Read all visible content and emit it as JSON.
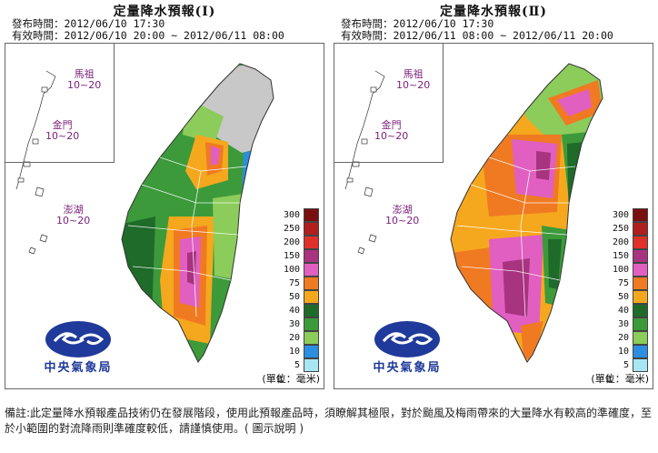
{
  "panels": [
    {
      "title": "定量降水預報(Ⅰ)",
      "issue_time": "發布時間：2012/06/10 17:30",
      "valid_time": "有效時間：2012/06/10 20:00 ~ 2012/06/11 08:00",
      "islands": [
        {
          "name": "馬祖",
          "range": "10~20"
        },
        {
          "name": "金門",
          "range": "10~20"
        },
        {
          "name": "澎湖",
          "range": "10~20"
        }
      ],
      "unit_label": "(單位：毫米)"
    },
    {
      "title": "定量降水預報(Ⅱ)",
      "issue_time": "發布時間：2012/06/10 17:30",
      "valid_time": "有效時間：2012/06/11 08:00 ~ 2012/06/11 20:00",
      "islands": [
        {
          "name": "馬祖",
          "range": "10~20"
        },
        {
          "name": "金門",
          "range": "10~20"
        },
        {
          "name": "澎湖",
          "range": "10~20"
        }
      ],
      "unit_label": "(單位：毫米)"
    }
  ],
  "legend": {
    "ge_symbol": "≧",
    "levels": [
      {
        "value": "300",
        "color": "#7a0f0f"
      },
      {
        "value": "250",
        "color": "#b01e1e"
      },
      {
        "value": "200",
        "color": "#e0302a"
      },
      {
        "value": "150",
        "color": "#a8337f"
      },
      {
        "value": "100",
        "color": "#e05fc0"
      },
      {
        "value": "75",
        "color": "#f07a22"
      },
      {
        "value": "50",
        "color": "#f5a81e"
      },
      {
        "value": "40",
        "color": "#1f6b2a"
      },
      {
        "value": "30",
        "color": "#3c9a3a"
      },
      {
        "value": "20",
        "color": "#8ccc5a"
      },
      {
        "value": "10",
        "color": "#2b8ee0"
      },
      {
        "value": "5",
        "color": "#a8e6f4"
      }
    ]
  },
  "logo_text": "中央氣象局",
  "footnote": {
    "text": "備註:此定量降水預報產品技術仍在發展階段，使用此預報產品時，須瞭解其極限，對於颱風及梅雨帶來的大量降水有較高的準確度，至於小範圍的對流降雨則準確度較低，請謹慎使用。(",
    "link": "圖示說明",
    "end": ")"
  }
}
